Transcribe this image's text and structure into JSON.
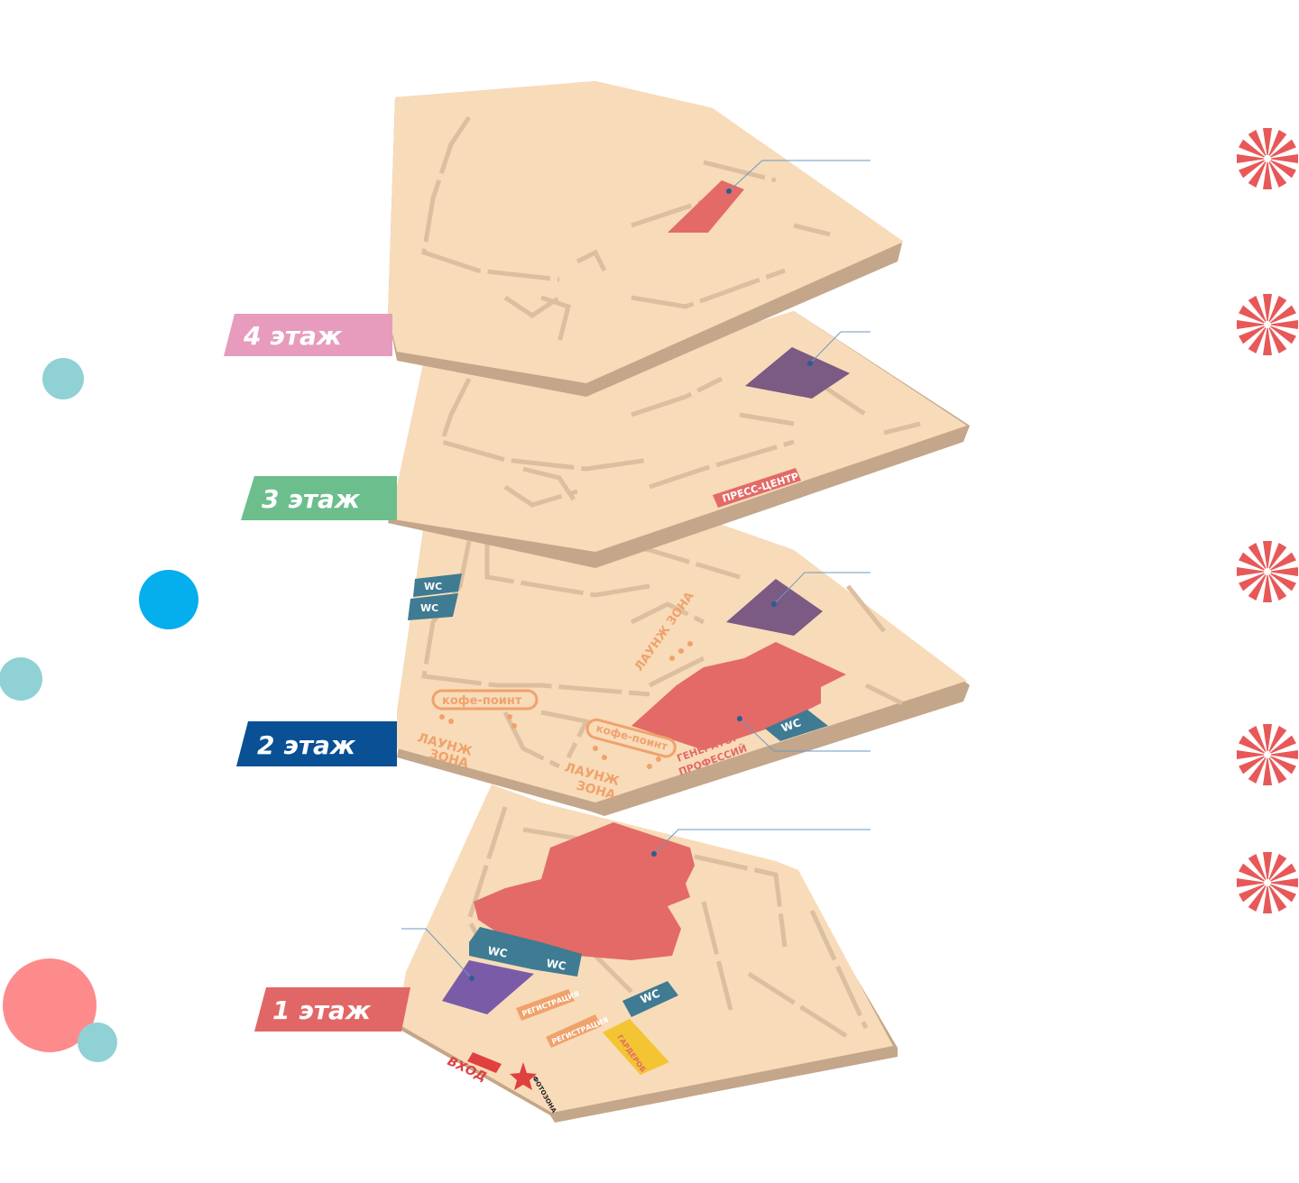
{
  "floors": [
    {
      "id": "4",
      "label": "4 этаж",
      "color": "#e79bbd"
    },
    {
      "id": "3",
      "label": "3 этаж",
      "color": "#6cbe8d"
    },
    {
      "id": "2",
      "label": "2 этаж",
      "color": "#0a5094"
    },
    {
      "id": "1",
      "label": "1 этаж",
      "color": "#e16766"
    }
  ],
  "map": {
    "floor_color": "#f8dbb9",
    "floor_edge_color": "#c4a68a",
    "line_color": "#dcbf9f",
    "zone_red": "#e36a67",
    "zone_purple": "#7b5a83",
    "zone_violet": "#7a5ba8",
    "wc_color": "#3f7b92",
    "label_orange": "#f0a26c"
  },
  "labels": {
    "press_center": "ПРЕСС-ЦЕНТР",
    "wc": "WC",
    "coffee_point": "кофе-поинт",
    "lounge": "ЛАУНЖ ЗОНА",
    "lounge_line1": "ЛАУНЖ",
    "lounge_line2": "ЗОНА",
    "generator_line1": "ГЕНЕРАТОР",
    "generator_line2": "ПРОФЕССИЙ",
    "registration": "РЕГИСТРАЦИЯ",
    "wardrobe": "ГАРДЕРОБ",
    "entrance": "ВХОД",
    "photozone": "ФОТОЗОНА"
  },
  "decor": {
    "dot_teal": "#8fd1d4",
    "dot_blue": "#05aeec",
    "dot_pink": "#fe8b8c",
    "pinwheel_red": "#e85858",
    "pinwheel_count": 5
  }
}
